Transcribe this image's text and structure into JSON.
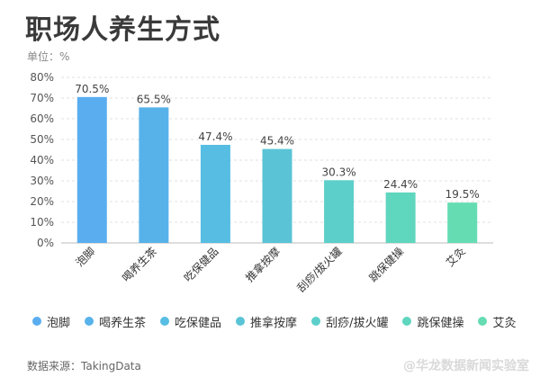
{
  "chart_data": {
    "type": "bar",
    "title": "职场人养生方式",
    "unit_label": "单位：%",
    "categories": [
      "泡脚",
      "喝养生茶",
      "吃保健品",
      "推拿按摩",
      "刮痧/拔火罐",
      "跳保健操",
      "艾灸"
    ],
    "values": [
      70.5,
      65.5,
      47.4,
      45.4,
      30.3,
      24.4,
      19.5
    ],
    "value_labels": [
      "70.5%",
      "65.5%",
      "47.4%",
      "45.4%",
      "30.3%",
      "24.4%",
      "19.5%"
    ],
    "y_ticks": [
      0,
      10,
      20,
      30,
      40,
      50,
      60,
      70,
      80
    ],
    "y_tick_labels": [
      "0%",
      "10%",
      "20%",
      "30%",
      "40%",
      "50%",
      "60%",
      "70%",
      "80%"
    ],
    "ylim": [
      0,
      80
    ],
    "grid": true,
    "legend_position": "bottom",
    "colors": [
      "#5aaef0",
      "#58b2ea",
      "#57bde3",
      "#5ac4d6",
      "#5ccfca",
      "#5fd6be",
      "#66dcb3"
    ],
    "source": "数据来源：TakingData"
  },
  "watermark": "@华龙数据新闻实验室"
}
